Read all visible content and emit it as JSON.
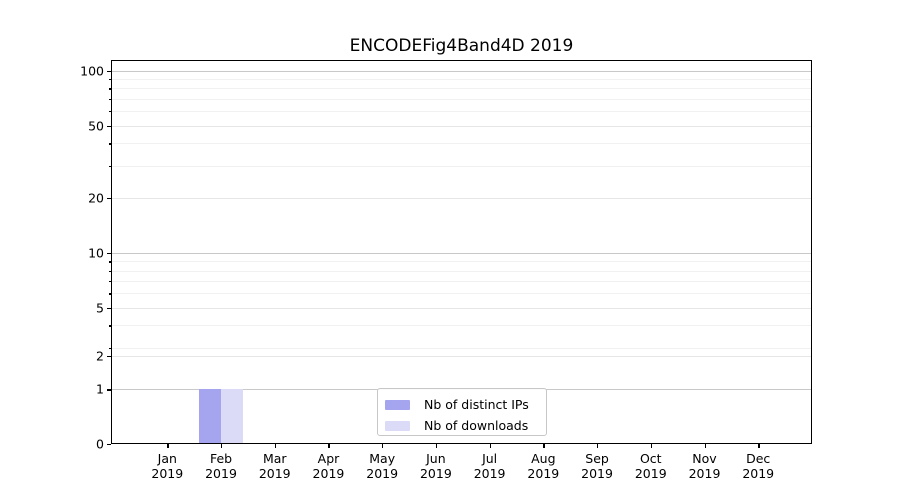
{
  "figure": {
    "title": "ENCODEFig4Band4D 2019"
  },
  "chart_data": {
    "type": "bar",
    "title": "ENCODEFig4Band4D 2019",
    "categories": [
      "Jan 2019",
      "Feb 2019",
      "Mar 2019",
      "Apr 2019",
      "May 2019",
      "Jun 2019",
      "Jul 2019",
      "Aug 2019",
      "Sep 2019",
      "Oct 2019",
      "Nov 2019",
      "Dec 2019"
    ],
    "series": [
      {
        "name": "Nb of distinct IPs",
        "color": "#a5a5ef",
        "values": [
          0,
          1,
          0,
          0,
          0,
          0,
          0,
          0,
          0,
          0,
          0,
          0
        ]
      },
      {
        "name": "Nb of downloads",
        "color": "#dbdbf8",
        "values": [
          0,
          1,
          0,
          0,
          0,
          0,
          0,
          0,
          0,
          0,
          0,
          0
        ]
      }
    ],
    "xlabel": "",
    "ylabel": "",
    "yscale": "symlog",
    "ylim": [
      0,
      113
    ],
    "yticks": [
      0,
      1,
      2,
      5,
      10,
      20,
      50,
      100
    ],
    "yticks_minor": [
      3,
      4,
      6,
      7,
      8,
      9,
      30,
      40,
      60,
      70,
      80,
      90
    ],
    "grid": true,
    "legend_position": "lower center"
  }
}
